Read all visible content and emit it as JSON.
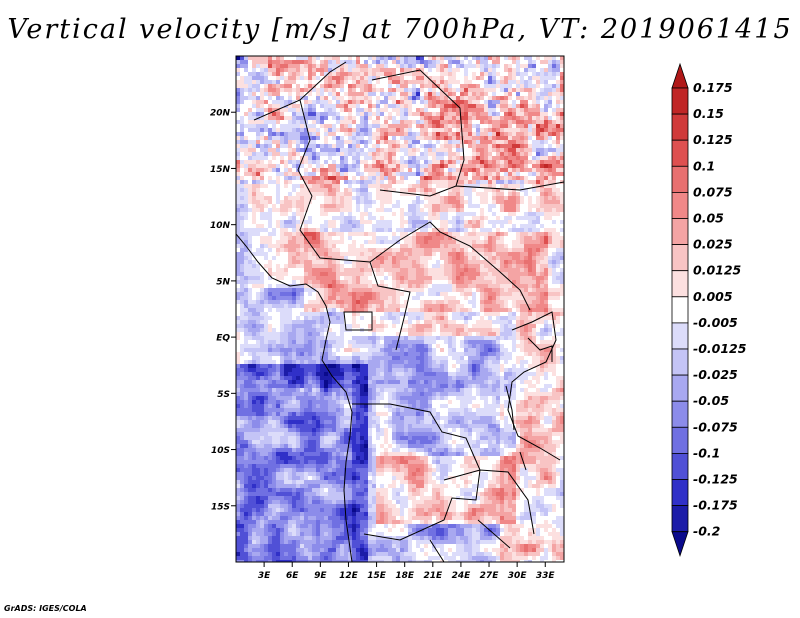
{
  "title": "Vertical velocity [m/s] at 700hPa, VT: 2019061415",
  "credit": "GrADS: IGES/COLA",
  "chart_data": {
    "type": "heatmap",
    "title": "Vertical velocity [m/s] at 700hPa, VT: 2019061415",
    "variable": "Vertical velocity",
    "units": "m/s",
    "level": "700hPa",
    "valid_time": "2019061415",
    "x_axis": {
      "range": [
        0,
        35
      ],
      "ticks": [
        3,
        6,
        9,
        12,
        15,
        18,
        21,
        24,
        27,
        30,
        33
      ],
      "tick_labels": [
        "3E",
        "6E",
        "9E",
        "12E",
        "15E",
        "18E",
        "21E",
        "24E",
        "27E",
        "30E",
        "33E"
      ]
    },
    "y_axis": {
      "range": [
        -20,
        25
      ],
      "ticks": [
        20,
        15,
        10,
        5,
        0,
        -5,
        -10,
        -15
      ],
      "tick_labels": [
        "20N",
        "15N",
        "10N",
        "5N",
        "EQ",
        "5S",
        "10S",
        "15S"
      ]
    },
    "colorbar": {
      "labels": [
        "0.175",
        "0.15",
        "0.125",
        "0.1",
        "0.075",
        "0.05",
        "0.025",
        "0.0125",
        "0.005",
        "-0.005",
        "-0.0125",
        "-0.025",
        "-0.05",
        "-0.075",
        "-0.1",
        "-0.125",
        "-0.175",
        "-0.2"
      ],
      "colors": [
        "#b01818",
        "#c02626",
        "#d03a3a",
        "#de5050",
        "#e87070",
        "#f08888",
        "#f4a4a4",
        "#f8c4c4",
        "#fce0e0",
        "#ffffff",
        "#dcdcfa",
        "#c4c4f6",
        "#a8a8f0",
        "#8c8cea",
        "#7070e2",
        "#5050d6",
        "#3030c8",
        "#1c1ca8",
        "#0a0a8c"
      ]
    }
  }
}
